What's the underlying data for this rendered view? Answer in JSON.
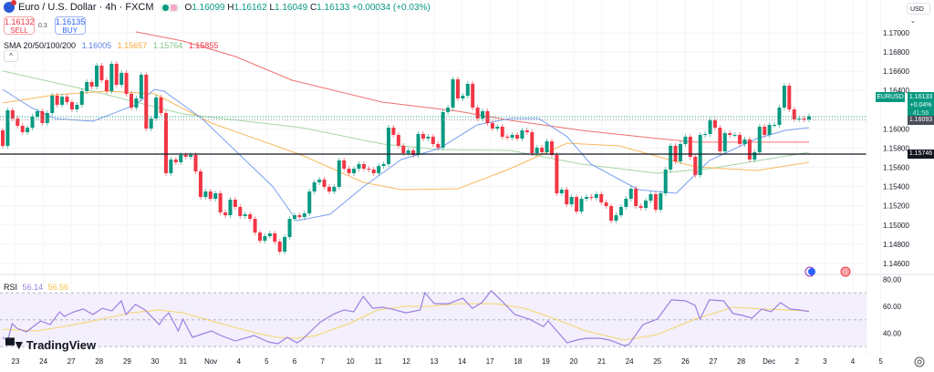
{
  "header": {
    "title": "Euro / U.S. Dollar · 4h · FXCM",
    "open_label": "O",
    "open": "1.16099",
    "high_label": "H",
    "high": "1.16162",
    "low_label": "L",
    "low": "1.16049",
    "close_label": "C",
    "close": "1.16133",
    "change": "+0.00034 (+0.03%)"
  },
  "trade": {
    "sell_price": "1.16132",
    "sell_label": "SELL",
    "spread": "0.3",
    "buy_price": "1.16135",
    "buy_label": "BUY"
  },
  "sma_legend": {
    "label": "SMA 20/50/100/200",
    "sma20": "1.16005",
    "sma50": "1.15657",
    "sma100": "1.15764",
    "sma200": "1.15855"
  },
  "rsi_legend": {
    "label": "RSI",
    "rsi": "56.14",
    "rsi_ma": "56.56"
  },
  "brand": "TradingView",
  "currency_button": "USD",
  "price_axis": {
    "ticks": [
      "1.17000",
      "1.16800",
      "1.16600",
      "1.16400",
      "1.16000",
      "1.15800",
      "1.15600",
      "1.15400",
      "1.15200",
      "1.15000",
      "1.14800",
      "1.14600"
    ],
    "symbol_label": "EURUSD",
    "last_price": "1.16133",
    "last_change": "+0.04%",
    "countdown": "41:56",
    "bid_line": "1.16093",
    "hline_price": "1.15746"
  },
  "rsi_axis": {
    "ticks": [
      "80.00",
      "60.00",
      "40.00"
    ]
  },
  "time_axis": {
    "labels": [
      "23",
      "24",
      "27",
      "28",
      "29",
      "30",
      "31",
      "Nov",
      "4",
      "5",
      "6",
      "7",
      "10",
      "11",
      "12",
      "13",
      "14",
      "17",
      "18",
      "19",
      "20",
      "21",
      "24",
      "25",
      "26",
      "27",
      "28",
      "Dec",
      "2",
      "3",
      "4",
      "5"
    ]
  },
  "colors": {
    "up": "#089981",
    "down": "#f23645",
    "sma20": "#7b9ef0",
    "sma50": "#f9b85c",
    "sma100": "#a5d6a7",
    "sma200": "#f07070",
    "rsi": "#9c7fe0",
    "rsi_ma": "#f5d66a"
  },
  "chart_data": {
    "type": "candlestick",
    "symbol": "EURUSD",
    "timeframe": "4h",
    "ylim": [
      1.1455,
      1.1712
    ],
    "first_open": 1.15985,
    "closes": [
      1.15824,
      1.16194,
      1.16108,
      1.16032,
      1.15966,
      1.16013,
      1.16127,
      1.16184,
      1.16061,
      1.16165,
      1.16346,
      1.16251,
      1.16336,
      1.16279,
      1.16203,
      1.16251,
      1.16393,
      1.16488,
      1.1644,
      1.16659,
      1.16507,
      1.16393,
      1.16678,
      1.16459,
      1.16583,
      1.16365,
      1.16222,
      1.16317,
      1.16564,
      1.16004,
      1.16108,
      1.16327,
      1.16165,
      1.15539,
      1.15681,
      1.15653,
      1.15729,
      1.1571,
      1.15729,
      1.15558,
      1.15292,
      1.15349,
      1.15273,
      1.1533,
      1.15131,
      1.15102,
      1.15264,
      1.15188,
      1.15093,
      1.15112,
      1.15064,
      1.14922,
      1.14837,
      1.14884,
      1.14913,
      1.14827,
      1.14723,
      1.14875,
      1.15064,
      1.15102,
      1.15083,
      1.15121,
      1.15349,
      1.15444,
      1.15473,
      1.15397,
      1.15349,
      1.15397,
      1.15672,
      1.15586,
      1.15539,
      1.15586,
      1.15634,
      1.15586,
      1.15577,
      1.15539,
      1.15615,
      1.15634,
      1.16013,
      1.15938,
      1.15824,
      1.15748,
      1.15776,
      1.15729,
      1.15947,
      1.159,
      1.15919,
      1.15843,
      1.15805,
      1.16175,
      1.16222,
      1.16516,
      1.16317,
      1.16346,
      1.16469,
      1.16222,
      1.16108,
      1.16184,
      1.16061,
      1.16004,
      1.16023,
      1.15919,
      1.15909,
      1.15938,
      1.159,
      1.15985,
      1.15966,
      1.15748,
      1.15805,
      1.15757,
      1.15871,
      1.15729,
      1.1533,
      1.15368,
      1.15216,
      1.15292,
      1.1514,
      1.15273,
      1.15292,
      1.15283,
      1.15321,
      1.15235,
      1.15197,
      1.15045,
      1.15102,
      1.15188,
      1.15273,
      1.15378,
      1.15197,
      1.15178,
      1.15254,
      1.15321,
      1.15159,
      1.1533,
      1.15577,
      1.15824,
      1.15662,
      1.15843,
      1.15919,
      1.1571,
      1.1552,
      1.15938,
      1.15947,
      1.16089,
      1.16013,
      1.15767,
      1.15956,
      1.15938,
      1.15938,
      1.15843,
      1.1589,
      1.15681,
      1.15757,
      1.16023,
      1.15938,
      1.16042,
      1.16042,
      1.16222,
      1.1645,
      1.16203,
      1.16099,
      1.16108,
      1.16099,
      1.16133
    ],
    "horizontal_line": 1.15746,
    "sma": {
      "sma20": [
        [
          0,
          1.16412
        ],
        [
          6,
          1.16222
        ],
        [
          11,
          1.16108
        ],
        [
          19,
          1.1608
        ],
        [
          28,
          1.16251
        ],
        [
          32,
          1.16412
        ],
        [
          34,
          1.16393
        ],
        [
          42,
          1.16108
        ],
        [
          49,
          1.15776
        ],
        [
          57,
          1.15397
        ],
        [
          62,
          1.15045
        ],
        [
          69,
          1.15112
        ],
        [
          76,
          1.15397
        ],
        [
          84,
          1.15681
        ],
        [
          92,
          1.15795
        ],
        [
          100,
          1.16042
        ],
        [
          107,
          1.16108
        ],
        [
          113,
          1.16108
        ],
        [
          119,
          1.15919
        ],
        [
          124,
          1.15634
        ],
        [
          134,
          1.15368
        ],
        [
          142,
          1.1533
        ],
        [
          149,
          1.15672
        ],
        [
          159,
          1.159
        ],
        [
          165,
          1.15985
        ],
        [
          170,
          1.16013
        ]
      ],
      "sma50": [
        [
          0,
          1.1627
        ],
        [
          11,
          1.16355
        ],
        [
          22,
          1.16393
        ],
        [
          32,
          1.16365
        ],
        [
          44,
          1.16061
        ],
        [
          63,
          1.15729
        ],
        [
          76,
          1.15444
        ],
        [
          84,
          1.15368
        ],
        [
          96,
          1.15378
        ],
        [
          107,
          1.15586
        ],
        [
          119,
          1.15852
        ],
        [
          130,
          1.15824
        ],
        [
          146,
          1.15605
        ],
        [
          159,
          1.15567
        ],
        [
          170,
          1.15653
        ]
      ],
      "sma100": [
        [
          0,
          1.16602
        ],
        [
          19,
          1.16393
        ],
        [
          38,
          1.16156
        ],
        [
          63,
          1.16013
        ],
        [
          80,
          1.15843
        ],
        [
          92,
          1.15786
        ],
        [
          107,
          1.15776
        ],
        [
          122,
          1.15634
        ],
        [
          138,
          1.15539
        ],
        [
          149,
          1.15586
        ],
        [
          170,
          1.15757
        ]
      ],
      "sma200": [
        [
          28,
          1.1701
        ],
        [
          38,
          1.16915
        ],
        [
          49,
          1.16754
        ],
        [
          61,
          1.16507
        ],
        [
          80,
          1.16279
        ],
        [
          96,
          1.16184
        ],
        [
          107,
          1.16089
        ],
        [
          122,
          1.15985
        ],
        [
          138,
          1.159
        ],
        [
          146,
          1.15862
        ],
        [
          170,
          1.15862
        ]
      ]
    },
    "rsi": {
      "levels": [
        70,
        50,
        30
      ],
      "ylim": [
        26,
        82
      ],
      "rsi": [
        [
          0,
          36.9
        ],
        [
          1,
          34.2
        ],
        [
          2,
          47.1
        ],
        [
          3,
          43.7
        ],
        [
          5,
          41.0
        ],
        [
          8,
          49.1
        ],
        [
          10,
          46.4
        ],
        [
          12,
          55.9
        ],
        [
          13,
          52.5
        ],
        [
          15,
          55.9
        ],
        [
          17,
          58.0
        ],
        [
          19,
          53.9
        ],
        [
          21,
          58.6
        ],
        [
          23,
          56.6
        ],
        [
          25,
          64.1
        ],
        [
          26,
          53.9
        ],
        [
          28,
          61.4
        ],
        [
          30,
          57.3
        ],
        [
          33,
          46.4
        ],
        [
          34,
          51.8
        ],
        [
          35,
          55.2
        ],
        [
          37,
          41.6
        ],
        [
          38,
          50.5
        ],
        [
          40,
          36.9
        ],
        [
          44,
          41.6
        ],
        [
          46,
          38.2
        ],
        [
          49,
          34.2
        ],
        [
          53,
          38.2
        ],
        [
          56,
          33.5
        ],
        [
          58,
          32.1
        ],
        [
          60,
          36.9
        ],
        [
          62,
          32.8
        ],
        [
          63,
          34.8
        ],
        [
          65,
          41.6
        ],
        [
          67,
          48.4
        ],
        [
          70,
          54.6
        ],
        [
          72,
          57.3
        ],
        [
          74,
          55.9
        ],
        [
          76,
          67.5
        ],
        [
          78,
          58.6
        ],
        [
          80,
          59.3
        ],
        [
          82,
          58.0
        ],
        [
          85,
          55.2
        ],
        [
          88,
          57.3
        ],
        [
          89,
          70.2
        ],
        [
          91,
          62.0
        ],
        [
          94,
          62.0
        ],
        [
          97,
          66.1
        ],
        [
          99,
          58.6
        ],
        [
          101,
          62.7
        ],
        [
          103,
          71.6
        ],
        [
          105,
          64.8
        ],
        [
          108,
          53.9
        ],
        [
          111,
          50.5
        ],
        [
          114,
          45.0
        ],
        [
          115,
          49.1
        ],
        [
          119,
          32.8
        ],
        [
          121,
          34.8
        ],
        [
          123,
          36.2
        ],
        [
          126,
          36.2
        ],
        [
          128,
          34.8
        ],
        [
          131,
          30.7
        ],
        [
          132,
          31.4
        ],
        [
          135,
          46.4
        ],
        [
          136,
          47.8
        ],
        [
          138,
          50.5
        ],
        [
          141,
          64.8
        ],
        [
          144,
          64.1
        ],
        [
          146,
          60.7
        ],
        [
          147,
          50.5
        ],
        [
          149,
          64.8
        ],
        [
          152,
          64.1
        ],
        [
          154,
          54.6
        ],
        [
          156,
          53.2
        ],
        [
          158,
          51.2
        ],
        [
          160,
          58.0
        ],
        [
          162,
          55.9
        ],
        [
          164,
          62.7
        ],
        [
          166,
          58.0
        ],
        [
          168,
          57.3
        ],
        [
          170,
          56.1
        ]
      ],
      "rsi_ma": [
        [
          0,
          43.0
        ],
        [
          7,
          41.6
        ],
        [
          13,
          45.0
        ],
        [
          19,
          49.1
        ],
        [
          27,
          55.2
        ],
        [
          33,
          57.3
        ],
        [
          38,
          55.2
        ],
        [
          46,
          47.1
        ],
        [
          54,
          39.6
        ],
        [
          58,
          36.9
        ],
        [
          62,
          36.2
        ],
        [
          66,
          38.2
        ],
        [
          73,
          47.1
        ],
        [
          79,
          57.3
        ],
        [
          85,
          60.0
        ],
        [
          90,
          60.0
        ],
        [
          96,
          62.0
        ],
        [
          104,
          62.0
        ],
        [
          110,
          58.6
        ],
        [
          115,
          52.5
        ],
        [
          123,
          41.6
        ],
        [
          131,
          34.8
        ],
        [
          138,
          38.9
        ],
        [
          146,
          50.5
        ],
        [
          154,
          59.3
        ],
        [
          160,
          58.0
        ],
        [
          170,
          56.6
        ]
      ]
    }
  }
}
